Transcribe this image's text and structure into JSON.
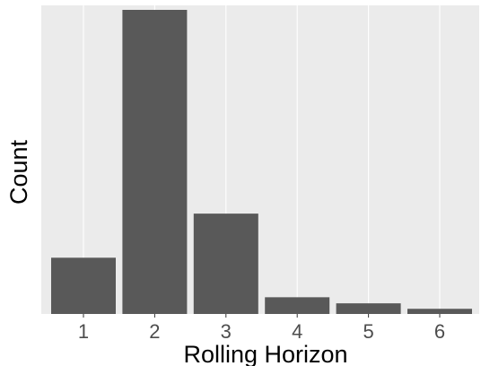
{
  "chart_data": {
    "type": "bar",
    "categories": [
      "1",
      "2",
      "3",
      "4",
      "5",
      "6"
    ],
    "values": [
      18.5,
      100,
      33,
      5.5,
      3.5,
      1.7
    ],
    "xlabel": "Rolling Horizon",
    "ylabel": "Count",
    "ylim": [
      0,
      100
    ],
    "grid": true,
    "y_tick_labels_shown": false,
    "colors": {
      "bar": "#595959",
      "panel": "#ebebeb",
      "grid_major": "#ffffff",
      "tick_text": "#4d4d4d",
      "axis_title": "#000000"
    }
  }
}
